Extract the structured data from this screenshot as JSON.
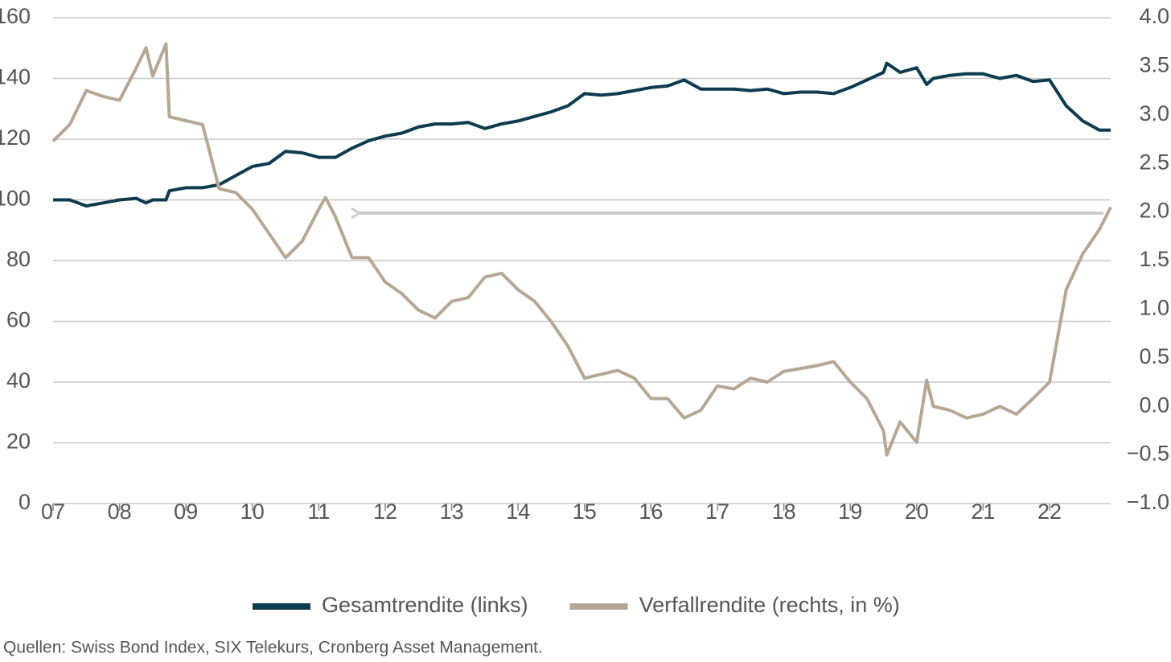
{
  "chart_data": {
    "type": "line",
    "x": [
      2007,
      2007.25,
      2007.5,
      2007.75,
      2008,
      2008.25,
      2008.4,
      2008.5,
      2008.7,
      2008.75,
      2009,
      2009.25,
      2009.5,
      2009.75,
      2010,
      2010.25,
      2010.5,
      2010.75,
      2011,
      2011.1,
      2011.25,
      2011.5,
      2011.75,
      2012,
      2012.25,
      2012.5,
      2012.75,
      2013,
      2013.25,
      2013.5,
      2013.75,
      2014,
      2014.25,
      2014.5,
      2014.75,
      2015,
      2015.25,
      2015.5,
      2015.75,
      2016,
      2016.25,
      2016.5,
      2016.75,
      2017,
      2017.25,
      2017.5,
      2017.75,
      2018,
      2018.25,
      2018.5,
      2018.75,
      2019,
      2019.25,
      2019.5,
      2019.55,
      2019.75,
      2020,
      2020.15,
      2020.25,
      2020.5,
      2020.75,
      2021,
      2021.25,
      2021.5,
      2021.75,
      2022,
      2022.25,
      2022.5,
      2022.75,
      2022.92
    ],
    "series": [
      {
        "name": "Gesamtrendite (links)",
        "color": "#0d3b4f",
        "values": [
          100,
          100,
          98,
          99,
          100,
          100.5,
          99,
          100,
          100,
          103,
          104,
          104,
          105,
          108,
          111,
          112,
          116,
          115.5,
          114,
          114,
          114,
          117,
          119.5,
          121,
          122,
          124,
          125,
          125,
          125.5,
          123.5,
          125,
          126,
          127.5,
          129,
          131,
          135,
          134.5,
          135,
          136,
          137,
          137.5,
          139.5,
          136.5,
          136.5,
          136.5,
          136,
          136.5,
          135,
          135.5,
          135.5,
          135,
          137,
          139.5,
          142,
          145,
          142,
          143.5,
          138,
          140,
          141,
          141.5,
          141.5,
          140,
          141,
          139,
          139.5,
          131,
          126,
          123,
          123
        ]
      },
      {
        "name": "Verfallrendite (rechts, in %)",
        "color": "#b5a794",
        "axis": "y2",
        "values": [
          2.73,
          2.9,
          3.25,
          3.19,
          3.15,
          3.48,
          3.69,
          3.4,
          3.73,
          2.98,
          2.94,
          2.9,
          2.24,
          2.2,
          2.03,
          1.78,
          1.53,
          1.7,
          2.03,
          2.15,
          1.95,
          1.53,
          1.53,
          1.28,
          1.16,
          0.99,
          0.91,
          1.08,
          1.12,
          1.33,
          1.37,
          1.2,
          1.08,
          0.87,
          0.62,
          0.29,
          0.33,
          0.37,
          0.29,
          0.08,
          0.08,
          -0.12,
          -0.04,
          0.21,
          0.18,
          0.29,
          0.25,
          0.36,
          0.39,
          0.42,
          0.46,
          0.25,
          0.08,
          -0.25,
          -0.5,
          -0.16,
          -0.37,
          0.27,
          0,
          -0.04,
          -0.12,
          -0.08,
          0,
          -0.08,
          0.08,
          0.25,
          1.2,
          1.57,
          1.82,
          2.05
        ]
      }
    ],
    "xlim": [
      2007,
      2022.92
    ],
    "xticks": [
      {
        "value": 2007,
        "label": "07"
      },
      {
        "value": 2008,
        "label": "08"
      },
      {
        "value": 2009,
        "label": "09"
      },
      {
        "value": 2010,
        "label": "10"
      },
      {
        "value": 2011,
        "label": "11"
      },
      {
        "value": 2012,
        "label": "12"
      },
      {
        "value": 2013,
        "label": "13"
      },
      {
        "value": 2014,
        "label": "14"
      },
      {
        "value": 2015,
        "label": "15"
      },
      {
        "value": 2016,
        "label": "16"
      },
      {
        "value": 2017,
        "label": "17"
      },
      {
        "value": 2018,
        "label": "18"
      },
      {
        "value": 2019,
        "label": "19"
      },
      {
        "value": 2020,
        "label": "20"
      },
      {
        "value": 2021,
        "label": "21"
      },
      {
        "value": 2022,
        "label": "22"
      }
    ],
    "ylim": [
      0,
      160
    ],
    "yticks": [
      0,
      20,
      40,
      60,
      80,
      100,
      120,
      140,
      160
    ],
    "y2lim": [
      -1,
      4
    ],
    "y2ticks": [
      {
        "value": -1,
        "label": "−1.0"
      },
      {
        "value": -0.5,
        "label": "−0.5"
      },
      {
        "value": 0,
        "label": "0.0"
      },
      0.5,
      {
        "value": 1,
        "label": "1.0"
      },
      1.5,
      {
        "value": 2,
        "label": "2.0"
      },
      2.5,
      {
        "value": 3,
        "label": "3.0"
      },
      3.5,
      {
        "value": 4,
        "label": "4.0"
      }
    ],
    "grid": true,
    "legend": "bottom",
    "source": "Quellen: Swiss Bond Index, SIX Telekurs, Cronberg Asset Management."
  }
}
